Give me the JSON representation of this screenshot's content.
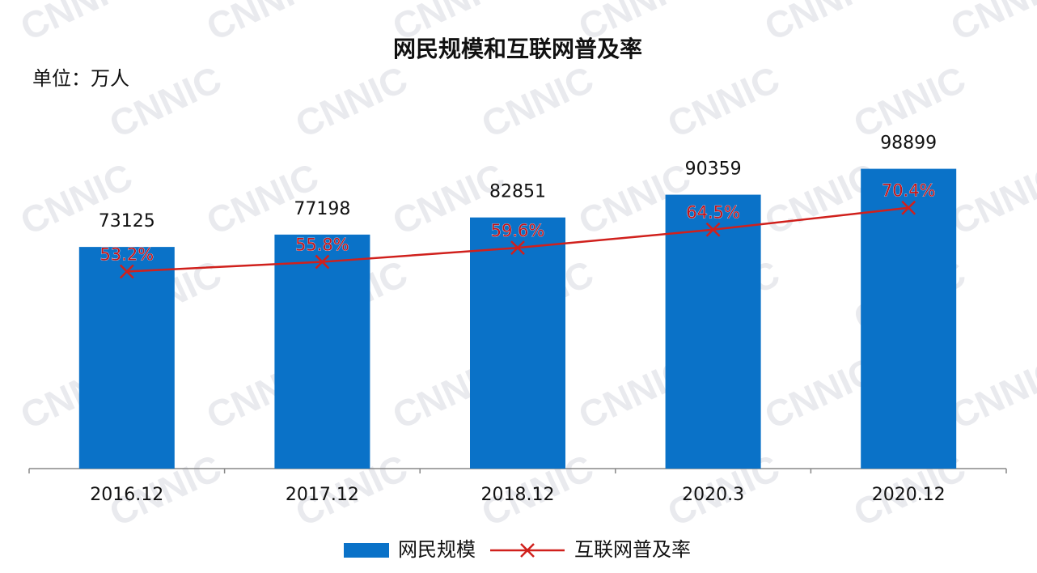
{
  "chart_data": {
    "type": "bar",
    "title": "网民规模和互联网普及率",
    "subtitle": "单位：万人",
    "watermark": "CNNIC",
    "categories": [
      "2016.12",
      "2017.12",
      "2018.12",
      "2020.3",
      "2020.12"
    ],
    "series": [
      {
        "name": "网民规模",
        "type": "bar",
        "color": "#0a72c8",
        "values": [
          73125,
          77198,
          82851,
          90359,
          98899
        ]
      },
      {
        "name": "互联网普及率",
        "type": "line",
        "axis": "y2",
        "color": "#d0201c",
        "values": [
          53.2,
          55.8,
          59.6,
          64.5,
          70.4
        ],
        "value_labels": [
          "53.2%",
          "55.8%",
          "59.6%",
          "64.5%",
          "70.4%"
        ]
      }
    ],
    "ylim": [
      0,
      110000
    ],
    "y2lim": [
      0,
      90
    ],
    "legend": "bottom"
  }
}
